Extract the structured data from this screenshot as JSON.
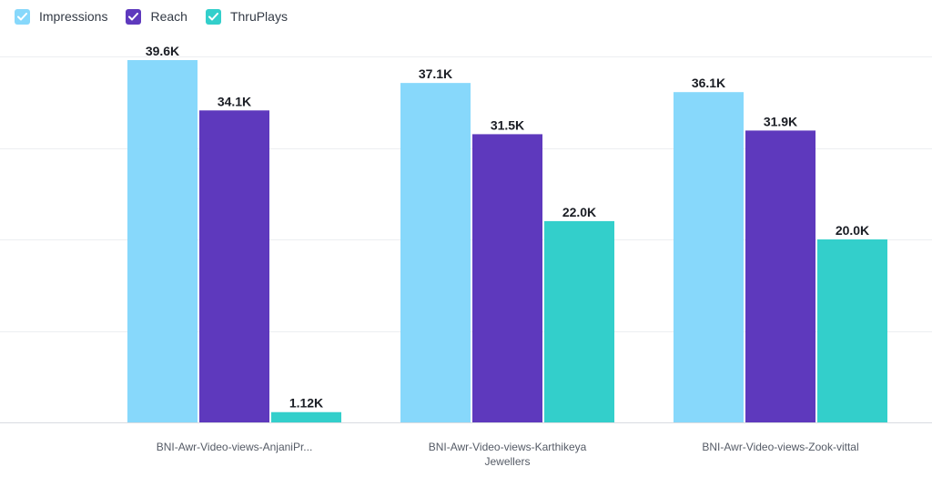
{
  "legend": [
    {
      "name": "Impressions",
      "color": "#87d8fb",
      "icon": "check-icon"
    },
    {
      "name": "Reach",
      "color": "#5e39bd",
      "icon": "check-icon"
    },
    {
      "name": "ThruPlays",
      "color": "#33cfcb",
      "icon": "check-icon"
    }
  ],
  "chart_data": {
    "type": "bar",
    "categories": [
      [
        "BNI-Awr-Video-views-AnjaniPr..."
      ],
      [
        "BNI-Awr-Video-views-Karthikeya",
        "Jewellers"
      ],
      [
        "BNI-Awr-Video-views-Zook-vittal"
      ]
    ],
    "series": [
      {
        "name": "Impressions",
        "color": "#87d8fb",
        "values": [
          39600,
          37100,
          36100
        ],
        "labels": [
          "39.6K",
          "37.1K",
          "36.1K"
        ]
      },
      {
        "name": "Reach",
        "color": "#5e39bd",
        "values": [
          34100,
          31500,
          31900
        ],
        "labels": [
          "34.1K",
          "31.5K",
          "31.9K"
        ]
      },
      {
        "name": "ThruPlays",
        "color": "#33cfcb",
        "values": [
          1120,
          22000,
          20000
        ],
        "labels": [
          "1.12K",
          "22.0K",
          "20.0K"
        ]
      }
    ],
    "ylim": [
      0,
      40000
    ],
    "grid": true,
    "legend_position": "top-left",
    "title": "",
    "xlabel": "",
    "ylabel": ""
  }
}
